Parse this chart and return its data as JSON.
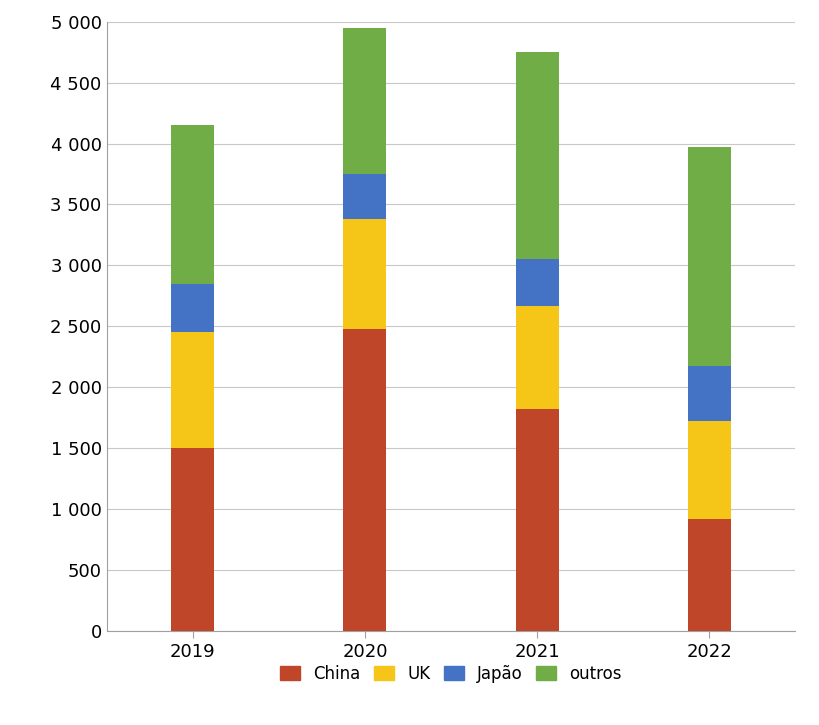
{
  "years": [
    "2019",
    "2020",
    "2021",
    "2022"
  ],
  "series": {
    "China": [
      1500,
      2480,
      1820,
      920
    ],
    "UK": [
      950,
      900,
      850,
      800
    ],
    "Japão": [
      400,
      370,
      380,
      450
    ],
    "outros": [
      1300,
      1200,
      1700,
      1800
    ]
  },
  "colors": {
    "China": "#C0462A",
    "UK": "#F5C518",
    "Japão": "#4472C4",
    "outros": "#70AD47"
  },
  "ylim": [
    0,
    5000
  ],
  "yticks": [
    0,
    500,
    1000,
    1500,
    2000,
    2500,
    3000,
    3500,
    4000,
    4500,
    5000
  ],
  "ytick_labels": [
    "0",
    "500",
    "1 000",
    "1 500",
    "2 000",
    "2 500",
    "3 000",
    "3 500",
    "4 000",
    "4 500",
    "5 000"
  ],
  "bar_width": 0.25,
  "background_color": "#FFFFFF",
  "grid_color": "#C8C8C8",
  "legend_order": [
    "China",
    "UK",
    "Japão",
    "outros"
  ],
  "figsize": [
    8.2,
    7.25
  ],
  "dpi": 100
}
